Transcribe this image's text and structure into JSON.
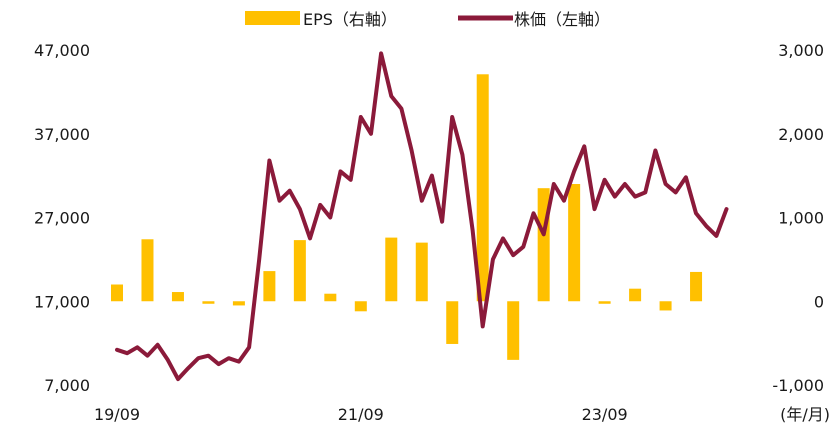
{
  "chart_data": {
    "type": "bar+line",
    "colors": {
      "eps": "#FFC000",
      "price": "#8B1A3A",
      "negative_tick": "#E00000"
    },
    "legend": [
      {
        "series": "eps",
        "label": "EPS（右軸）"
      },
      {
        "series": "price",
        "label": "株価（左軸）"
      }
    ],
    "legend_placement": "top-center",
    "grid": false,
    "axes": {
      "left": {
        "ticks": [
          "7,000",
          "17,000",
          "27,000",
          "37,000",
          "47,000"
        ],
        "range": [
          7000,
          47000
        ]
      },
      "right": {
        "ticks": [
          "-1,000",
          "0",
          "1,000",
          "2,000",
          "3,000"
        ],
        "range": [
          -1000,
          3000
        ]
      },
      "x": {
        "ticks": [
          "19/09",
          "21/09",
          "23/09"
        ],
        "unit_label": "(年/月)",
        "range": [
          "2019-09",
          "2024-12"
        ]
      }
    },
    "eps_series": {
      "name": "EPS",
      "axis": "right",
      "x": [
        "2019-09",
        "2019-12",
        "2020-03",
        "2020-06",
        "2020-09",
        "2020-12",
        "2021-03",
        "2021-06",
        "2021-09",
        "2021-12",
        "2022-03",
        "2022-06",
        "2022-09",
        "2022-12",
        "2023-03",
        "2023-06",
        "2023-09",
        "2023-12",
        "2024-03",
        "2024-06"
      ],
      "values": [
        200,
        740,
        110,
        -30,
        -50,
        360,
        730,
        90,
        -120,
        760,
        700,
        -510,
        2710,
        -700,
        1350,
        1400,
        -30,
        150,
        -110,
        350
      ]
    },
    "price_series": {
      "name": "株価",
      "axis": "left",
      "x": [
        "2019-09",
        "2019-10",
        "2019-11",
        "2019-12",
        "2020-01",
        "2020-02",
        "2020-03",
        "2020-04",
        "2020-05",
        "2020-06",
        "2020-07",
        "2020-08",
        "2020-09",
        "2020-10",
        "2020-11",
        "2020-12",
        "2021-01",
        "2021-02",
        "2021-03",
        "2021-04",
        "2021-05",
        "2021-06",
        "2021-07",
        "2021-08",
        "2021-09",
        "2021-10",
        "2021-11",
        "2021-12",
        "2022-01",
        "2022-02",
        "2022-03",
        "2022-04",
        "2022-05",
        "2022-06",
        "2022-07",
        "2022-08",
        "2022-09",
        "2022-10",
        "2022-11",
        "2022-12",
        "2023-01",
        "2023-02",
        "2023-03",
        "2023-04",
        "2023-05",
        "2023-06",
        "2023-07",
        "2023-08",
        "2023-09",
        "2023-10",
        "2023-11",
        "2023-12",
        "2024-01",
        "2024-02",
        "2024-03",
        "2024-04",
        "2024-05",
        "2024-06",
        "2024-07",
        "2024-08",
        "2024-09"
      ],
      "values": [
        11200,
        10800,
        11500,
        10500,
        11800,
        10000,
        7700,
        9000,
        10200,
        10500,
        9500,
        10200,
        9800,
        11500,
        22000,
        33800,
        29000,
        30200,
        28000,
        24500,
        28500,
        27000,
        32500,
        31500,
        39000,
        37000,
        46600,
        41500,
        40000,
        35000,
        29000,
        32000,
        26500,
        39000,
        34500,
        25500,
        14000,
        22000,
        24500,
        22500,
        23500,
        27500,
        25000,
        31000,
        29000,
        32500,
        35500,
        28000,
        31500,
        29500,
        31000,
        29500,
        30000,
        35000,
        31000,
        30000,
        31800,
        27500,
        26000,
        24800,
        28000
      ]
    }
  }
}
